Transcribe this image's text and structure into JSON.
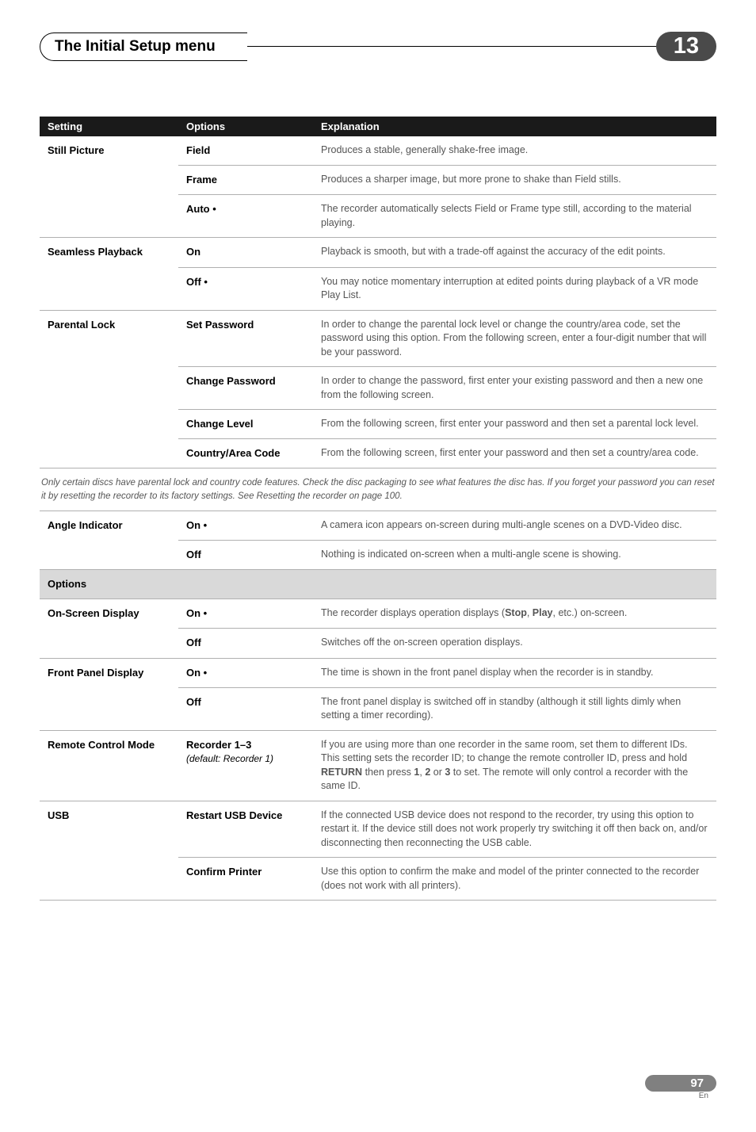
{
  "header": {
    "title": "The Initial Setup menu",
    "chapter": "13"
  },
  "table": {
    "headers": {
      "setting": "Setting",
      "options": "Options",
      "explanation": "Explanation"
    },
    "rows_1": [
      {
        "setting": "Still Picture",
        "option": "Field",
        "explanation": "Produces a stable, generally shake-free image.",
        "rowspan": 3,
        "heavy": false
      },
      {
        "option": "Frame",
        "explanation": "Produces a sharper image, but more prone to shake than Field stills."
      },
      {
        "option": "Auto •",
        "explanation": "The recorder automatically selects Field or Frame type still, according to the material playing.",
        "heavy": true
      },
      {
        "setting": "Seamless Playback",
        "option": "On",
        "explanation": "Playback is smooth, but with a trade-off against the accuracy of the edit points.",
        "rowspan": 2
      },
      {
        "option": "Off •",
        "explanation": "You may notice momentary interruption at edited points during playback of a VR mode Play List.",
        "heavy": true
      },
      {
        "setting": "Parental Lock",
        "option": "Set Password",
        "explanation": "In order to change the parental lock level or change the country/area code, set the password using this option. From the following screen, enter a four-digit number that will be your password.",
        "rowspan": 4
      },
      {
        "option": "Change Password",
        "explanation": "In order to change the password, first enter your existing password and then a new one from the following screen."
      },
      {
        "option": "Change Level",
        "explanation": "From the following screen, first enter your password and then set a parental lock level."
      },
      {
        "option": "Country/Area Code",
        "explanation": "From the following screen, first enter your password and then set a country/area code.",
        "heavy": true
      }
    ],
    "note": "Only certain discs have parental lock and country code features. Check the disc packaging to see what features the disc has. If you forget your password you can reset it by resetting the recorder to its factory settings. See Resetting the recorder on page 100.",
    "rows_2": [
      {
        "setting": "Angle Indicator",
        "option": "On •",
        "explanation": "A camera icon appears on-screen during multi-angle scenes on a DVD-Video disc.",
        "rowspan": 2
      },
      {
        "option": "Off",
        "explanation": "Nothing is indicated on-screen when a multi-angle scene is showing.",
        "heavy": true
      }
    ],
    "options_section_label": "Options",
    "rows_3": [
      {
        "setting": "On-Screen Display",
        "option": "On •",
        "explanation_html": "The recorder displays operation displays (<b>Stop</b>, <b>Play</b>, etc.) on-screen.",
        "rowspan": 2
      },
      {
        "option": "Off",
        "explanation": "Switches off the on-screen operation displays.",
        "heavy": true
      },
      {
        "setting": "Front Panel Display",
        "option": "On •",
        "explanation": "The time is shown in the front panel display when the recorder is in standby.",
        "rowspan": 2
      },
      {
        "option": "Off",
        "explanation": "The front panel display is switched off in standby (although it still lights dimly when setting a timer recording).",
        "heavy": true
      },
      {
        "setting": "Remote Control Mode",
        "option": "Recorder 1–3",
        "option_sub": "(default: Recorder 1)",
        "explanation_html": "If you are using more than one recorder in the same room, set them to different IDs. This setting sets the recorder ID; to change the remote controller ID, press and hold <b>RETURN</b> then press <b>1</b>, <b>2</b> or <b>3</b> to set. The remote will only control a recorder with the same ID.",
        "rowspan": 1,
        "heavy": true
      },
      {
        "setting": "USB",
        "option": "Restart USB Device",
        "explanation": "If the connected USB device does not respond to the recorder, try using this option to restart it. If the device still does not work properly try switching it off then back on, and/or disconnecting then reconnecting the USB cable.",
        "rowspan": 2
      },
      {
        "option": "Confirm Printer",
        "explanation": "Use this option to confirm the make and model of the printer connected to the recorder (does not work with all printers).",
        "heavy": true
      }
    ]
  },
  "footer": {
    "page": "97",
    "lang": "En"
  }
}
